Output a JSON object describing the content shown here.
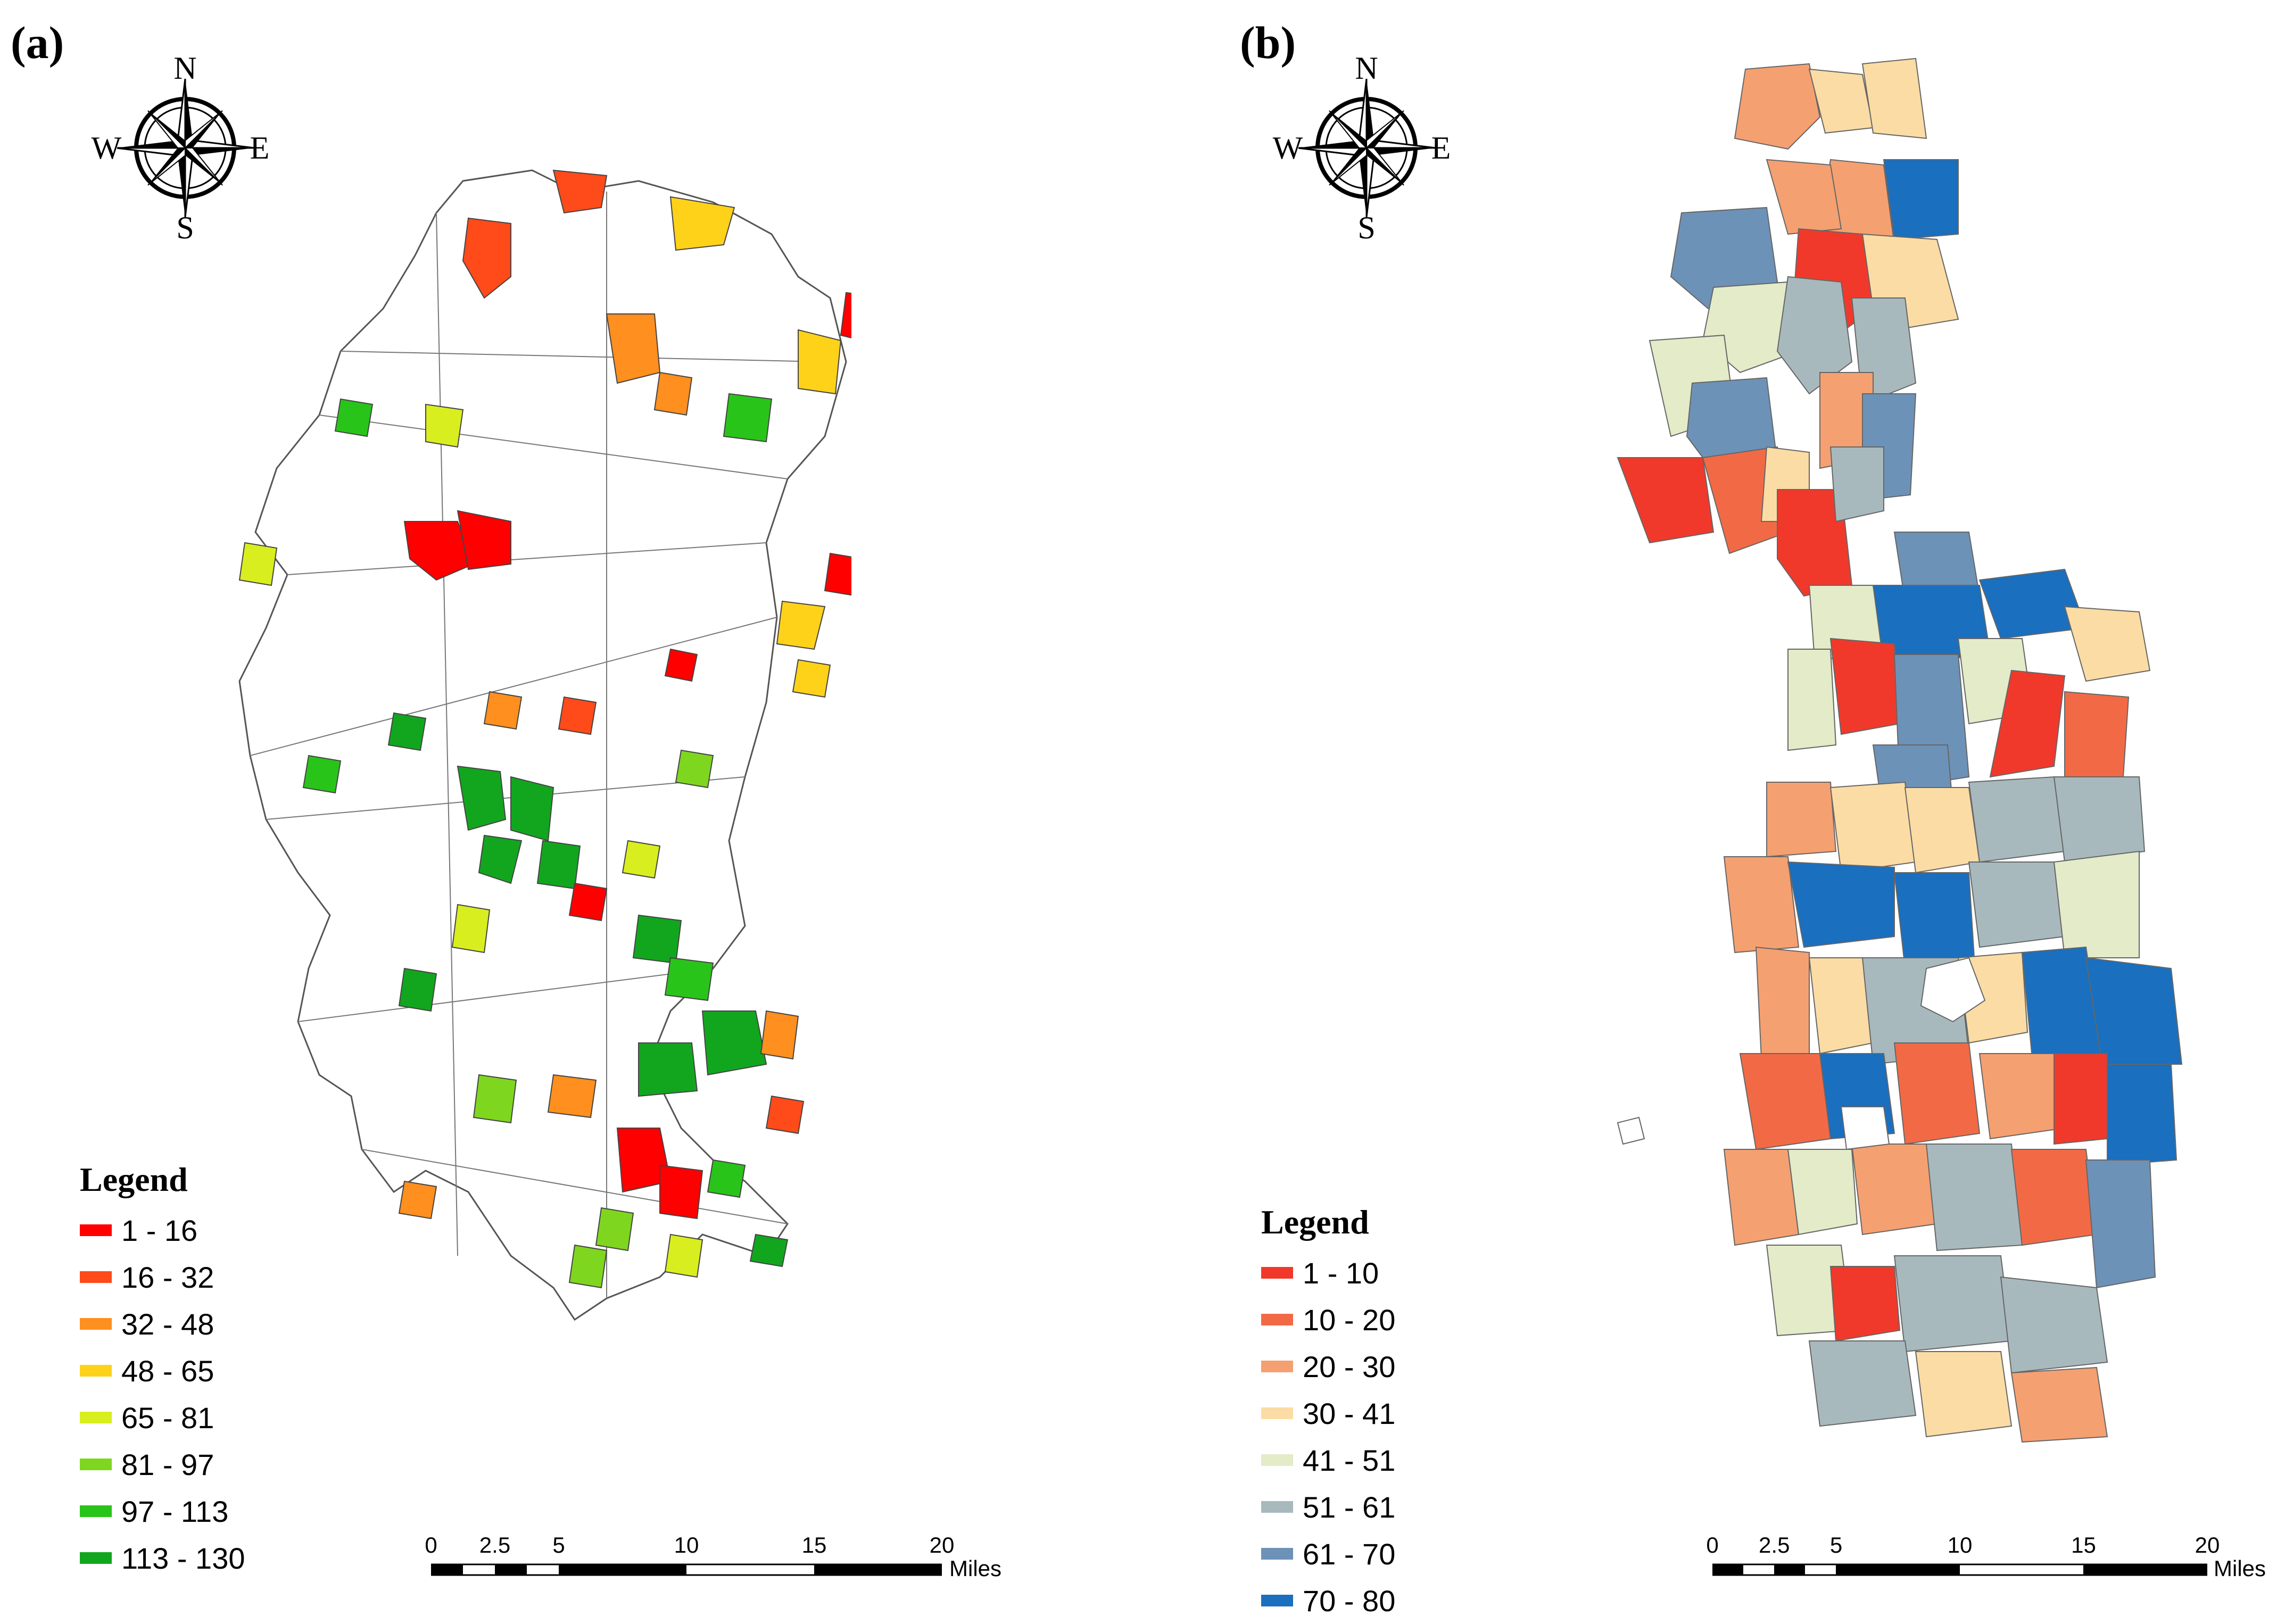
{
  "panel_a": {
    "label": "(a)",
    "compass": {
      "n": "N",
      "s": "S",
      "e": "E",
      "w": "W"
    },
    "legend": {
      "title": "Legend",
      "items": [
        {
          "label": " 1 - 16",
          "color": "#ff0000"
        },
        {
          "label": "16 - 32",
          "color": "#ff4a1a"
        },
        {
          "label": "32 - 48",
          "color": "#ff8f1f"
        },
        {
          "label": "48 - 65",
          "color": "#ffd21a"
        },
        {
          "label": "65 - 81",
          "color": "#d9ee1f"
        },
        {
          "label": "81 - 97",
          "color": "#7fd61f"
        },
        {
          "label": "97 - 113",
          "color": "#29c41a"
        },
        {
          "label": "113 - 130",
          "color": "#12a61f"
        }
      ]
    },
    "scale": {
      "ticks": [
        "0",
        "2.5",
        "5",
        "10",
        "15",
        "20"
      ],
      "unit": "Miles"
    }
  },
  "panel_b": {
    "label": "(b)",
    "compass": {
      "n": "N",
      "s": "S",
      "e": "E",
      "w": "W"
    },
    "legend": {
      "title": "Legend",
      "items": [
        {
          "label": " 1 - 10",
          "color": "#f0392b"
        },
        {
          "label": "10 - 20",
          "color": "#f26a45"
        },
        {
          "label": "20 - 30",
          "color": "#f5a071"
        },
        {
          "label": "30 - 41",
          "color": "#fbdca4"
        },
        {
          "label": "41 - 51",
          "color": "#e3ebc8"
        },
        {
          "label": "51 - 61",
          "color": "#a8b9bd"
        },
        {
          "label": "61 - 70",
          "color": "#6d92b7"
        },
        {
          "label": "70 - 80",
          "color": "#1a6fbf"
        }
      ]
    },
    "scale": {
      "ticks": [
        "0",
        "2.5",
        "5",
        "10",
        "15",
        "20"
      ],
      "unit": "Miles"
    }
  }
}
